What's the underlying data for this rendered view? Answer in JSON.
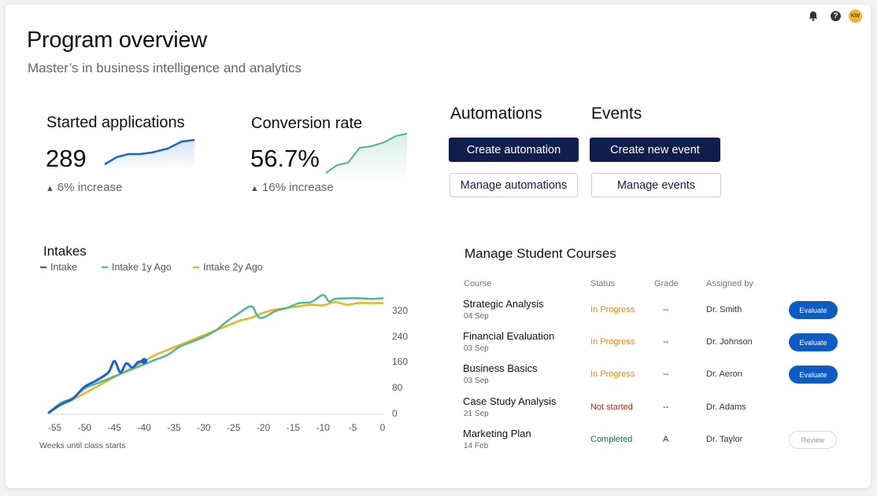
{
  "header": {
    "title": "Program overview",
    "subtitle": "Master’s in business intelligence and analytics",
    "icons": [
      "bell-icon",
      "help-icon"
    ],
    "avatar_initials": "KW"
  },
  "stats": [
    {
      "label": "Started applications",
      "value": "289",
      "delta": "6% increase",
      "spark_color": "#1f63d6"
    },
    {
      "label": "Conversion rate",
      "value": "56.7%",
      "delta": "16% increase",
      "spark_color": "#4db391"
    }
  ],
  "automations": {
    "heading": "Automations",
    "primary": "Create automation",
    "secondary": "Manage automations"
  },
  "events": {
    "heading": "Events",
    "primary": "Create new event",
    "secondary": "Manage events"
  },
  "chart_data": {
    "type": "line",
    "title": "Intakes",
    "xlabel": "Weeks until class starts",
    "ylabel": "",
    "xlim": [
      -56,
      0
    ],
    "ylim": [
      0,
      400
    ],
    "x_ticks": [
      "-55",
      "-50",
      "-45",
      "-40",
      "-35",
      "-30",
      "-25",
      "-20",
      "-15",
      "-10",
      "-5",
      "0"
    ],
    "y_ticks": [
      "0",
      "80",
      "160",
      "240",
      "320"
    ],
    "series": [
      {
        "name": "Intake",
        "color": "#1762d6",
        "x": [
          -56,
          -54,
          -52,
          -50,
          -48,
          -46,
          -45,
          -44,
          -43,
          -42,
          -41,
          -40
        ],
        "y": [
          5,
          30,
          48,
          85,
          105,
          130,
          165,
          130,
          158,
          145,
          162,
          165
        ]
      },
      {
        "name": "Intake 1y Ago",
        "color": "#4fb898",
        "x": [
          -56,
          -54,
          -52,
          -50,
          -48,
          -46,
          -44,
          -42,
          -40,
          -38,
          -36,
          -34,
          -32,
          -30,
          -28,
          -26,
          -24,
          -22,
          -21,
          -20,
          -18,
          -16,
          -14,
          -12,
          -10,
          -9,
          -8,
          -6,
          -4,
          -2,
          0
        ],
        "y": [
          5,
          35,
          50,
          80,
          95,
          110,
          125,
          140,
          155,
          170,
          185,
          210,
          225,
          240,
          260,
          290,
          315,
          335,
          305,
          300,
          320,
          330,
          345,
          348,
          370,
          350,
          358,
          360,
          360,
          358,
          360
        ]
      },
      {
        "name": "Intake 2y Ago",
        "color": "#f2b01e",
        "x": [
          -56,
          -54,
          -52,
          -50,
          -48,
          -46,
          -44,
          -42,
          -40,
          -38,
          -36,
          -34,
          -32,
          -30,
          -28,
          -26,
          -24,
          -22,
          -20,
          -18,
          -16,
          -14,
          -12,
          -10,
          -8,
          -6,
          -4,
          -2,
          0
        ],
        "y": [
          5,
          30,
          45,
          65,
          85,
          105,
          125,
          145,
          165,
          185,
          200,
          215,
          230,
          245,
          260,
          275,
          290,
          300,
          315,
          325,
          330,
          335,
          340,
          338,
          348,
          340,
          345,
          345,
          345
        ]
      }
    ]
  },
  "courses": {
    "title": "Manage Student Courses",
    "columns": [
      "Course",
      "Status",
      "Grade",
      "Assigned by"
    ],
    "rows": [
      {
        "course": "Strategic Analysis",
        "date": "04 Sep",
        "status": "In Progress",
        "status_color": "#e08a1e",
        "grade": "--",
        "assigned": "Dr. Smith",
        "action": "Evaluate"
      },
      {
        "course": "Financial Evaluation",
        "date": "03 Sep",
        "status": "In Progress",
        "status_color": "#e08a1e",
        "grade": "--",
        "assigned": "Dr. Johnson",
        "action": "Evaluate"
      },
      {
        "course": "Business Basics",
        "date": "03 Sep",
        "status": "In Progress",
        "status_color": "#e08a1e",
        "grade": "--",
        "assigned": "Dr. Aeron",
        "action": "Evaluate"
      },
      {
        "course": "Case Study Analysis",
        "date": "21 Sep",
        "status": "Not started",
        "status_color": "#b3261e",
        "grade": "--",
        "assigned": "Dr. Adams",
        "action": ""
      },
      {
        "course": "Marketing Plan",
        "date": "14 Feb",
        "status": "Completed",
        "status_color": "#1f6b55",
        "grade": "A",
        "assigned": "Dr. Taylor",
        "action": "Review"
      }
    ]
  }
}
